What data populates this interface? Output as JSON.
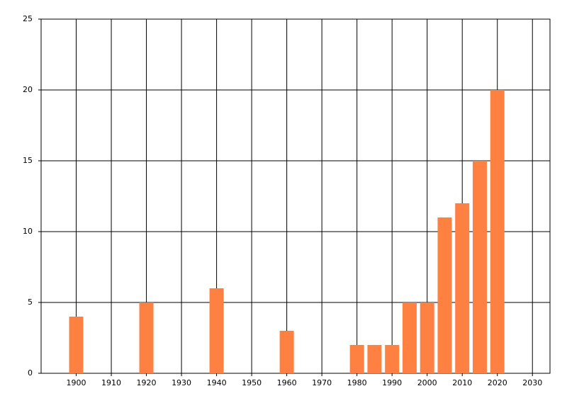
{
  "chart_data": {
    "type": "bar",
    "x": [
      1900,
      1920,
      1940,
      1960,
      1980,
      1985,
      1990,
      1995,
      2000,
      2005,
      2010,
      2015,
      2020
    ],
    "values": [
      4,
      5,
      6,
      3,
      2,
      2,
      2,
      5,
      5,
      11,
      12,
      15,
      20
    ],
    "color": "#ff8142",
    "xlim": [
      1890,
      2035
    ],
    "xticks": [
      1900,
      1910,
      1920,
      1930,
      1940,
      1950,
      1960,
      1970,
      1980,
      1990,
      2000,
      2010,
      2020,
      2030
    ],
    "ylim": [
      0,
      25
    ],
    "yticks": [
      0,
      5,
      10,
      15,
      20,
      25
    ],
    "grid": true
  }
}
